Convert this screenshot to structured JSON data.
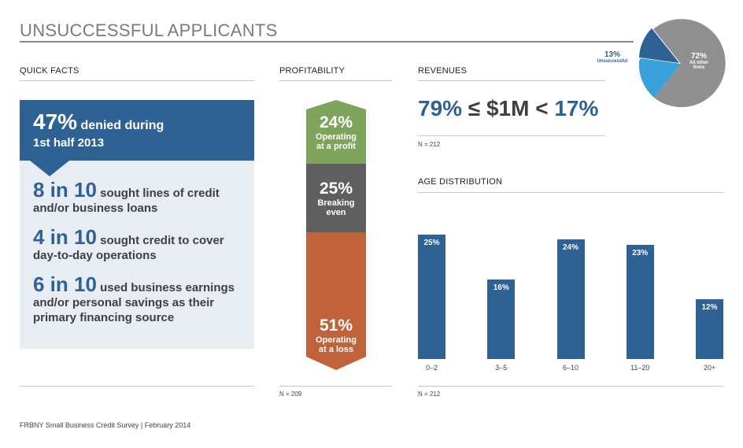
{
  "title": "UNSUCCESSFUL APPLICANTS",
  "sections": {
    "quick_facts": "QUICK FACTS",
    "profitability": "PROFITABILITY",
    "revenues": "REVENUES",
    "age_distribution": "AGE DISTRIBUTION"
  },
  "quick_facts": {
    "denied_big": "47%",
    "denied_small": " denied during",
    "denied_line2": "1st half 2013",
    "facts": [
      {
        "num": "8 in 10",
        "text": " sought lines of credit and/or business loans"
      },
      {
        "num": "4 in 10",
        "text": " sought credit to cover day-to-day operations"
      },
      {
        "num": "6 in 10",
        "text": " used business earnings and/or personal savings as their primary financing source"
      }
    ]
  },
  "profitability": {
    "segments": [
      {
        "pct": "24%",
        "label_1": "Operating",
        "label_2": "at a profit",
        "color": "#7ea35a"
      },
      {
        "pct": "25%",
        "label_1": "Breaking",
        "label_2": "even",
        "color": "#5f5f5f"
      },
      {
        "pct": "51%",
        "label_1": "Operating",
        "label_2": "at a loss",
        "color": "#c0623a"
      }
    ],
    "n": "N = 209"
  },
  "revenues": {
    "left": "79%",
    "mid": " ≤ $1M < ",
    "right": "17%",
    "n": "N = 212"
  },
  "pie": {
    "unsuccessful_pct": "13%",
    "unsuccessful_label": "Unsuccessful",
    "other_pct": "72%",
    "other_label_1": "All other",
    "other_label_2": "firms",
    "colors": {
      "unsuccessful": "#2e6295",
      "middle": "#3aa0db",
      "other": "#8f8f8f"
    }
  },
  "chart_data": {
    "type": "bar",
    "categories": [
      "0–2",
      "3–5",
      "6–10",
      "11–20",
      "20+"
    ],
    "values": [
      25,
      16,
      24,
      23,
      12
    ],
    "value_labels": [
      "25%",
      "16%",
      "24%",
      "23%",
      "12%"
    ],
    "title": "AGE DISTRIBUTION",
    "ylim": [
      0,
      25
    ],
    "color": "#2e6295",
    "n": "N = 212"
  },
  "footer": "FRBNY Small Business Credit Survey  |  February 2014"
}
